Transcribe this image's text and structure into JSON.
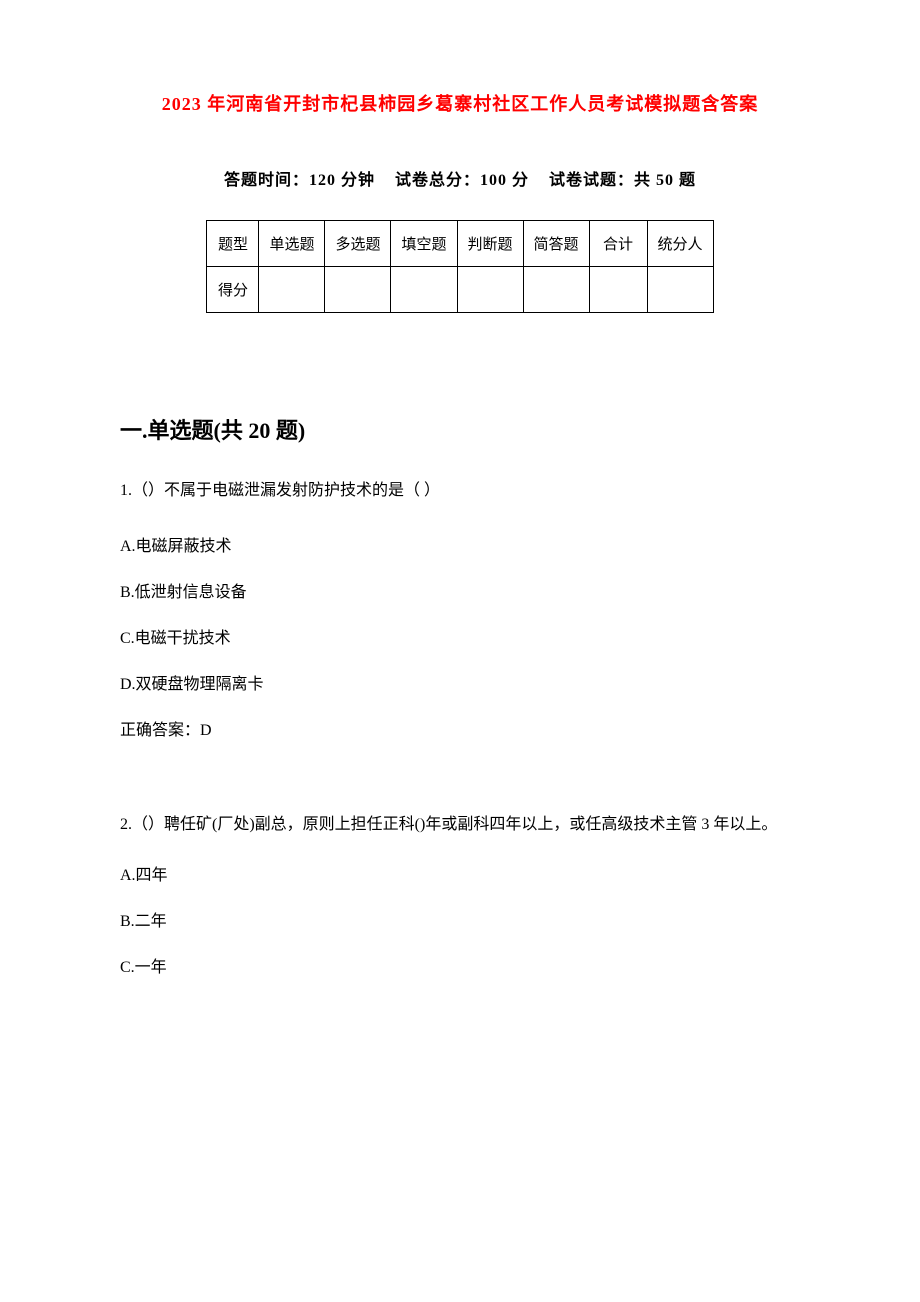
{
  "title": "2023 年河南省开封市杞县柿园乡葛寨村社区工作人员考试模拟题含答案",
  "exam_info": {
    "time_label": "答题时间：",
    "time_value": "120 分钟",
    "total_label": "试卷总分：",
    "total_value": "100 分",
    "count_label": "试卷试题：",
    "count_value": "共 50 题"
  },
  "table": {
    "headers": [
      "题型",
      "单选题",
      "多选题",
      "填空题",
      "判断题",
      "简答题",
      "合计",
      "统分人"
    ],
    "row2_label": "得分"
  },
  "section1": {
    "title": "一.单选题(共 20 题)"
  },
  "q1": {
    "text": "1.（）不属于电磁泄漏发射防护技术的是（ ）",
    "optA": "A.电磁屏蔽技术",
    "optB": "B.低泄射信息设备",
    "optC": "C.电磁干扰技术",
    "optD": "D.双硬盘物理隔离卡",
    "answer": "正确答案：D"
  },
  "q2": {
    "text": "2.（）聘任矿(厂处)副总，原则上担任正科()年或副科四年以上，或任高级技术主管 3 年以上。",
    "optA": "A.四年",
    "optB": "B.二年",
    "optC": "C.一年"
  },
  "colors": {
    "title_color": "#ff0000",
    "text_color": "#000000",
    "background": "#ffffff",
    "border_color": "#000000"
  },
  "typography": {
    "title_fontsize": 18,
    "body_fontsize": 16,
    "section_fontsize": 22,
    "table_fontsize": 15
  }
}
